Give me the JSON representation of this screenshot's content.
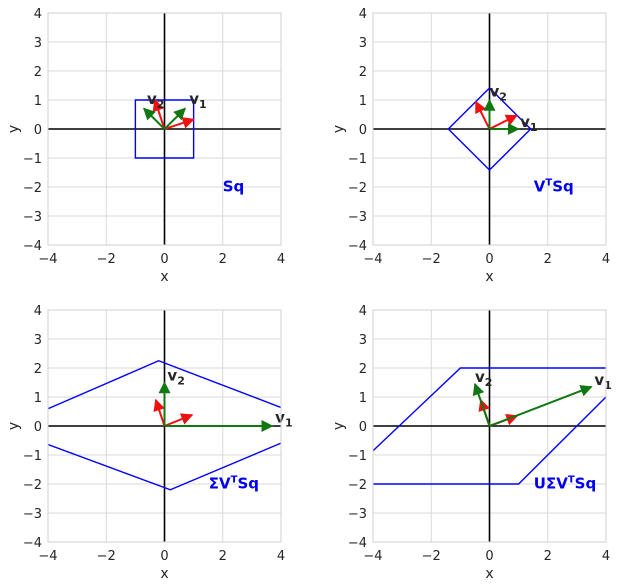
{
  "figure": {
    "colors": {
      "shape": "#0000ff",
      "arrow_red": "#ee1111",
      "arrow_green": "#117711",
      "grid": "#d9d9d9",
      "axis": "#000000"
    }
  },
  "chart_data": [
    {
      "type": "line",
      "panel_label": {
        "base": "Sq",
        "sup": ""
      },
      "xlabel": "x",
      "ylabel": "y",
      "xlim": [
        -4,
        4
      ],
      "ylim": [
        -4,
        4
      ],
      "xticks": [
        "−4",
        "−2",
        "0",
        "2",
        "4"
      ],
      "yticks": [
        "−4",
        "−3",
        "−2",
        "−1",
        "0",
        "1",
        "2",
        "3",
        "4"
      ],
      "grid": true,
      "shape": [
        [
          1,
          1
        ],
        [
          -1,
          1
        ],
        [
          -1,
          -1
        ],
        [
          1,
          -1
        ]
      ],
      "red_arrows": [
        [
          1,
          0.33
        ],
        [
          -0.33,
          1
        ]
      ],
      "green_arrows": [
        [
          0.707,
          0.707
        ],
        [
          -0.707,
          0.707
        ]
      ],
      "vector_labels": [
        {
          "base": "v",
          "sub": "1",
          "at": [
            0.85,
            0.8
          ]
        },
        {
          "base": "v",
          "sub": "2",
          "at": [
            -0.6,
            0.8
          ]
        }
      ]
    },
    {
      "type": "line",
      "panel_label": {
        "base": "V",
        "sup": "T",
        "tail": "Sq"
      },
      "xlabel": "x",
      "ylabel": "y",
      "xlim": [
        -4,
        4
      ],
      "ylim": [
        -4,
        4
      ],
      "xticks": [
        "−4",
        "−2",
        "0",
        "2",
        "4"
      ],
      "yticks": [
        "−4",
        "−3",
        "−2",
        "−1",
        "0",
        "1",
        "2",
        "3",
        "4"
      ],
      "grid": true,
      "shape": [
        [
          1.414,
          0
        ],
        [
          0,
          1.414
        ],
        [
          -1.414,
          0
        ],
        [
          0,
          -1.414
        ]
      ],
      "red_arrows": [
        [
          0.94,
          0.47
        ],
        [
          -0.47,
          0.94
        ]
      ],
      "green_arrows": [
        [
          1,
          0
        ],
        [
          0,
          1
        ]
      ],
      "vector_labels": [
        {
          "base": "v",
          "sub": "1",
          "at": [
            1.05,
            0.0
          ]
        },
        {
          "base": "v",
          "sub": "2",
          "at": [
            0.0,
            1.05
          ]
        }
      ]
    },
    {
      "type": "line",
      "panel_label": {
        "base": "ΣV",
        "sup": "T",
        "tail": "Sq"
      },
      "xlabel": "x",
      "ylabel": "y",
      "xlim": [
        -4,
        4
      ],
      "ylim": [
        -4,
        4
      ],
      "xticks": [
        "−4",
        "−2",
        "0",
        "2",
        "4"
      ],
      "yticks": [
        "−4",
        "−3",
        "−2",
        "−1",
        "0",
        "1",
        "2",
        "3",
        "4"
      ],
      "grid": true,
      "shape": [
        [
          4.1,
          0.6
        ],
        [
          -0.2,
          2.25
        ],
        [
          -4.1,
          0.55
        ],
        [
          -4.1,
          -0.6
        ],
        [
          0.2,
          -2.2
        ],
        [
          4.1,
          -0.55
        ]
      ],
      "red_arrows": [
        [
          0.95,
          0.38
        ],
        [
          -0.3,
          0.9
        ]
      ],
      "green_arrows": [
        [
          3.7,
          0
        ],
        [
          0,
          1.5
        ]
      ],
      "vector_labels": [
        {
          "base": "v",
          "sub": "1",
          "at": [
            3.8,
            0.05
          ]
        },
        {
          "base": "v",
          "sub": "2",
          "at": [
            0.1,
            1.5
          ]
        }
      ]
    },
    {
      "type": "line",
      "panel_label": {
        "base": "UΣV",
        "sup": "T",
        "tail": "Sq"
      },
      "xlabel": "x",
      "ylabel": "y",
      "xlim": [
        -4,
        4
      ],
      "ylim": [
        -4,
        4
      ],
      "xticks": [
        "−4",
        "−2",
        "0",
        "2",
        "4"
      ],
      "yticks": [
        "−4",
        "−3",
        "−2",
        "−1",
        "0",
        "1",
        "2",
        "3",
        "4"
      ],
      "grid": true,
      "shape": [
        [
          -1,
          2
        ],
        [
          4.1,
          2
        ],
        [
          4.1,
          1.1
        ],
        [
          1,
          -2
        ],
        [
          -4.1,
          -2
        ],
        [
          -4.1,
          -0.95
        ]
      ],
      "red_arrows": [
        [
          0.95,
          0.35
        ],
        [
          -0.3,
          0.9
        ]
      ],
      "green_arrows": [
        [
          3.5,
          1.35
        ],
        [
          -0.5,
          1.45
        ]
      ],
      "vector_labels": [
        {
          "base": "v",
          "sub": "1",
          "at": [
            3.6,
            1.35
          ]
        },
        {
          "base": "v",
          "sub": "2",
          "at": [
            -0.5,
            1.45
          ]
        }
      ]
    }
  ]
}
